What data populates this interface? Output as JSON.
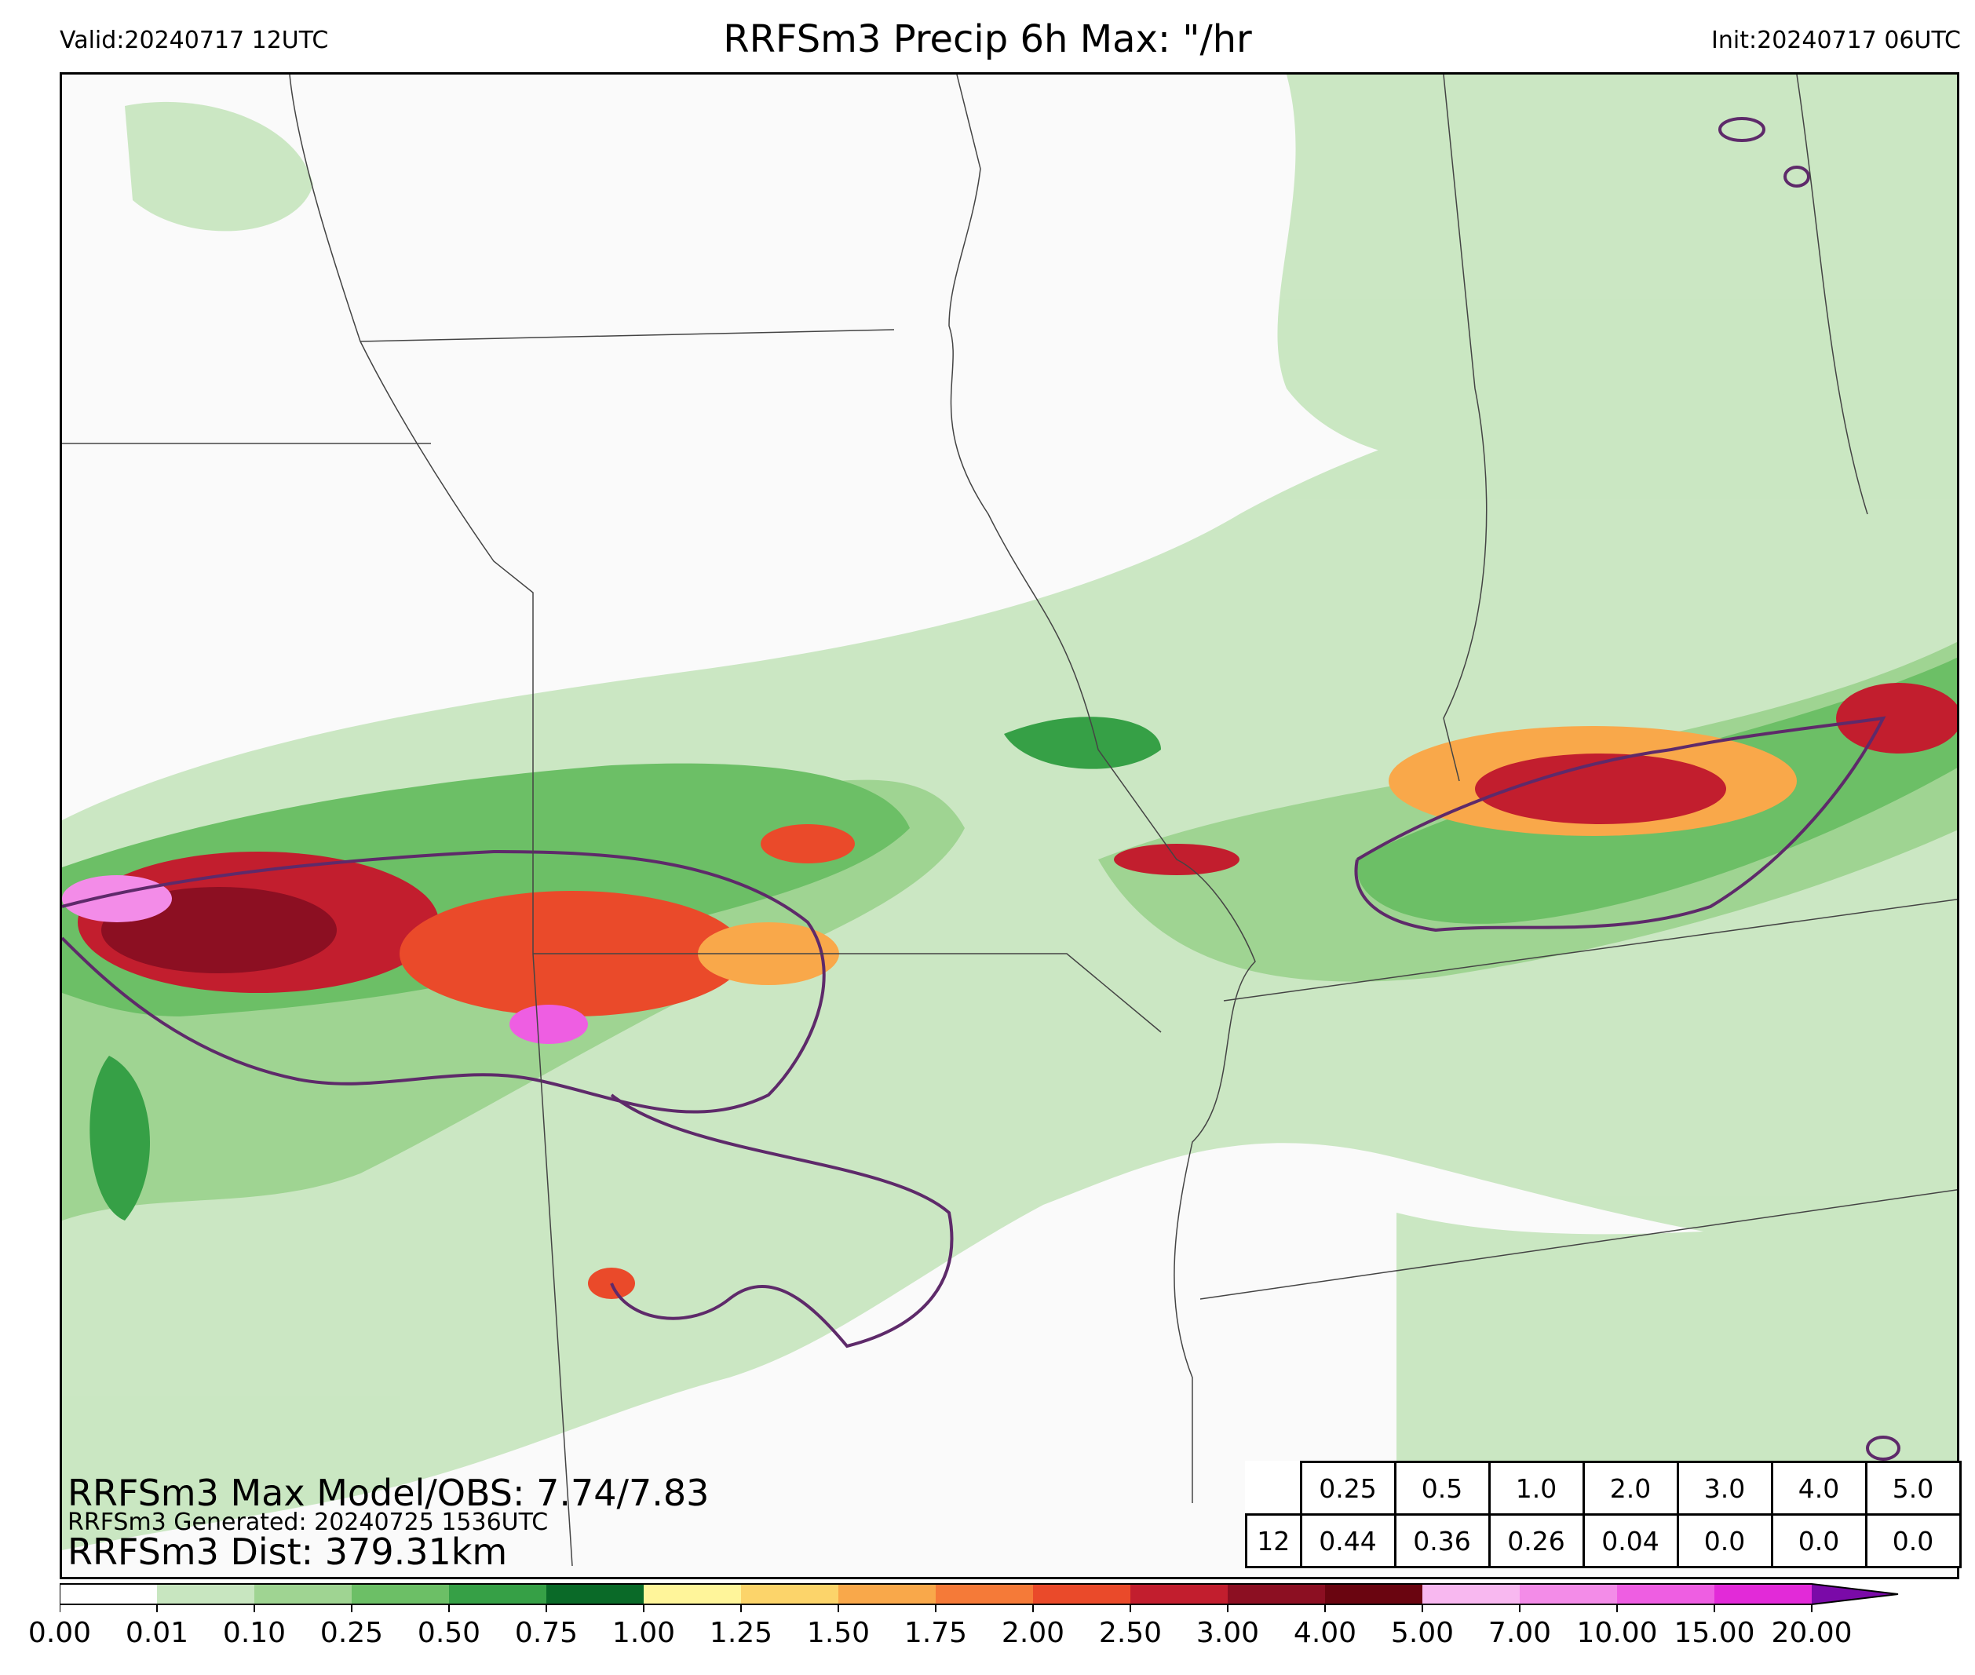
{
  "header": {
    "valid": "Valid:20240717 12UTC",
    "title": "RRFSm3 Precip 6h Max: \"/hr",
    "init": "Init:20240717 06UTC"
  },
  "stats": {
    "max_model_obs": "RRFSm3 Max Model/OBS: 7.74/7.83",
    "generated": "RRFSm3 Generated: 20240725 1536UTC",
    "dist": "RRFSm3 Dist: 379.31km"
  },
  "table": {
    "thresholds": [
      "0.25",
      "0.5",
      "1.0",
      "2.0",
      "3.0",
      "4.0",
      "5.0"
    ],
    "row_label": "12",
    "values": [
      "0.44",
      "0.36",
      "0.26",
      "0.04",
      "0.0",
      "0.0",
      "0.0"
    ]
  },
  "colorbar": {
    "ticks": [
      "0.00",
      "0.01",
      "0.10",
      "0.25",
      "0.50",
      "0.75",
      "1.00",
      "1.25",
      "1.50",
      "1.75",
      "2.00",
      "2.50",
      "3.00",
      "4.00",
      "5.00",
      "7.00",
      "10.00",
      "15.00",
      "20.00"
    ],
    "colors": [
      "#ffffff",
      "#c8e6c0",
      "#9fd492",
      "#6cbf66",
      "#36a046",
      "#0a6a28",
      "#fff59a",
      "#fcd46a",
      "#f9a84a",
      "#f57a38",
      "#ea4a2a",
      "#c21e2e",
      "#8c0f22",
      "#6a0510",
      "#f8b8f0",
      "#f38ce8",
      "#ee5ee2",
      "#e22ad8",
      "#b61ad0",
      "#7a0aa8"
    ]
  }
}
